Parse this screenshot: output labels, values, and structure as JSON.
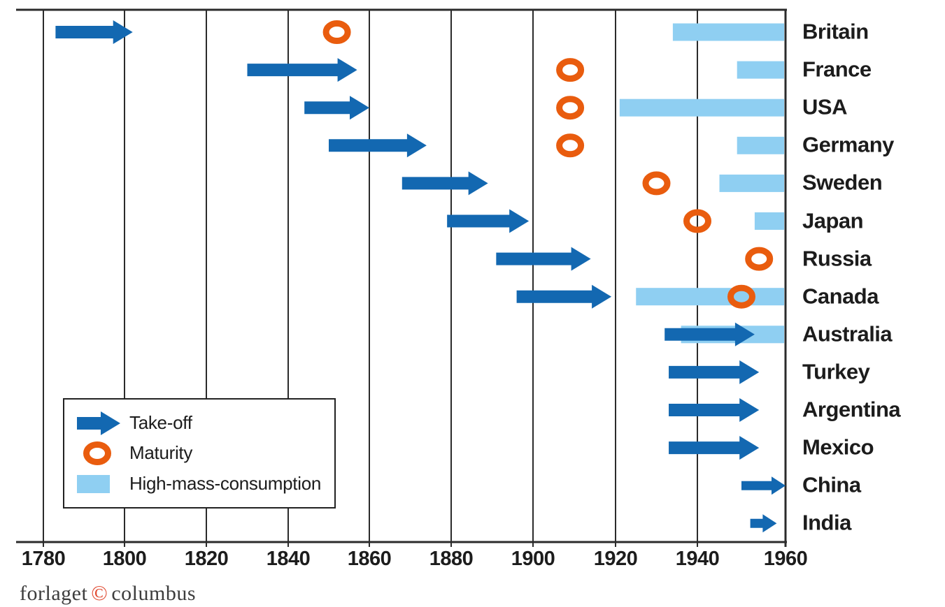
{
  "chart_data": {
    "type": "bar",
    "variant": "horizontal-gantt-timeline",
    "title": "",
    "xlabel": "",
    "ylabel": "",
    "x_ticks": [
      1780,
      1800,
      1820,
      1840,
      1860,
      1880,
      1900,
      1920,
      1940,
      1960
    ],
    "x_range": [
      1780,
      1963
    ],
    "grid": true,
    "legend_position": "inside-bottom-left",
    "legend": {
      "takeoff": "Take-off",
      "maturity": "Maturity",
      "hmc": "High-mass-consumption"
    },
    "colors": {
      "takeoff_arrow": "#1368b1",
      "maturity_ring": "#e95c0e",
      "hmc_bar": "#8fcff2",
      "axis_line": "#2b2b2b",
      "label_text": "#1c1c1c"
    },
    "countries": [
      {
        "name": "Britain",
        "takeoff": {
          "start": 1783,
          "end": 1802
        },
        "maturity": 1852,
        "hmc": {
          "start": 1934,
          "end": "edge"
        },
        "small_arrow": false
      },
      {
        "name": "France",
        "takeoff": {
          "start": 1830,
          "end": 1857
        },
        "maturity": 1909,
        "hmc": {
          "start": 1949,
          "end": "edge"
        },
        "small_arrow": false
      },
      {
        "name": "USA",
        "takeoff": {
          "start": 1844,
          "end": 1860
        },
        "maturity": 1909,
        "hmc": {
          "start": 1921,
          "end": "edge"
        },
        "small_arrow": false
      },
      {
        "name": "Germany",
        "takeoff": {
          "start": 1850,
          "end": 1874
        },
        "maturity": 1909,
        "hmc": {
          "start": 1949,
          "end": "edge"
        },
        "small_arrow": false
      },
      {
        "name": "Sweden",
        "takeoff": {
          "start": 1868,
          "end": 1889
        },
        "maturity": 1930,
        "hmc": {
          "start": 1945,
          "end": "edge"
        },
        "small_arrow": false
      },
      {
        "name": "Japan",
        "takeoff": {
          "start": 1879,
          "end": 1899
        },
        "maturity": 1940,
        "hmc": {
          "start": 1953,
          "end": "edge"
        },
        "small_arrow": false
      },
      {
        "name": "Russia",
        "takeoff": {
          "start": 1891,
          "end": 1914
        },
        "maturity": 1954,
        "hmc": null,
        "small_arrow": false
      },
      {
        "name": "Canada",
        "takeoff": {
          "start": 1896,
          "end": 1919
        },
        "maturity": 1950,
        "hmc": {
          "start": 1925,
          "end": "edge"
        },
        "small_arrow": false
      },
      {
        "name": "Australia",
        "takeoff": {
          "start": 1932,
          "end": 1953
        },
        "maturity": null,
        "hmc": {
          "start": 1936,
          "end": "edge"
        },
        "small_arrow": false
      },
      {
        "name": "Turkey",
        "takeoff": {
          "start": 1933,
          "end": 1954
        },
        "maturity": null,
        "hmc": null,
        "small_arrow": false
      },
      {
        "name": "Argentina",
        "takeoff": {
          "start": 1933,
          "end": 1954
        },
        "maturity": null,
        "hmc": null,
        "small_arrow": false
      },
      {
        "name": "Mexico",
        "takeoff": {
          "start": 1933,
          "end": 1954
        },
        "maturity": null,
        "hmc": null,
        "small_arrow": false
      },
      {
        "name": "China",
        "takeoff": {
          "start": 1950,
          "end": 1960
        },
        "maturity": null,
        "hmc": null,
        "small_arrow": true
      },
      {
        "name": "India",
        "takeoff": {
          "start": 1952,
          "end": 1958
        },
        "maturity": null,
        "hmc": null,
        "small_arrow": true
      }
    ]
  },
  "footer": {
    "publisher_left": "forlaget",
    "copyright_symbol": "©",
    "publisher_right": "columbus"
  }
}
